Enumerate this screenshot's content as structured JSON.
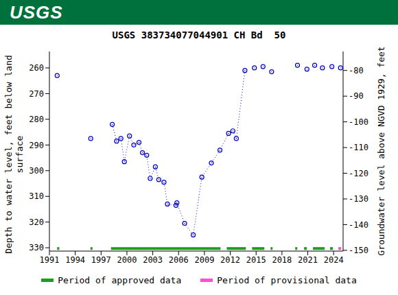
{
  "chart_data": {
    "type": "scatter",
    "logo_text": "USGS",
    "title": "USGS 383734077044901 CH Bd  50",
    "ylabel": "Depth to water level, feet below land surface",
    "y2label": "Groundwater level above NGVD 1929, feet",
    "xlim": [
      1991,
      2025.1
    ],
    "xticks": [
      1991,
      1994,
      1997,
      2000,
      2003,
      2006,
      2009,
      2012,
      2015,
      2018,
      2021,
      2024
    ],
    "ylim": [
      331.3,
      253.6
    ],
    "yticks": [
      260,
      270,
      280,
      290,
      300,
      310,
      320,
      330
    ],
    "y2lim": [
      -150.3,
      -72.6
    ],
    "y2ticks": [
      -80,
      -90,
      -100,
      -110,
      -120,
      -130,
      -140,
      -150
    ],
    "grid": false,
    "series": [
      {
        "type": "line",
        "marker": "circle",
        "line_style": "dotted",
        "color": "#0000cc",
        "x": [
          1998.3,
          1998.8,
          1999.3,
          1999.7,
          2000.3,
          2000.8,
          2001.4,
          2001.8,
          2002.3,
          2002.7,
          2003.3,
          2003.7,
          2004.3,
          2004.7,
          2005.7,
          2005.8,
          2006.7,
          2007.7,
          2008.7,
          2009.8,
          2010.8,
          2011.8,
          2012.3,
          2012.7,
          2013.7
        ],
        "values": [
          282,
          288.5,
          287.5,
          296.5,
          286.5,
          290,
          289,
          293,
          294,
          303,
          298.5,
          303.5,
          304.5,
          313,
          313.5,
          312.5,
          320.5,
          325,
          302.5,
          297,
          292,
          285.5,
          284.5,
          287.5,
          261
        ]
      },
      {
        "type": "scatter",
        "marker": "circle",
        "color": "#0000cc",
        "x": [
          1991.9,
          1995.8,
          2014.8,
          2015.8,
          2016.8,
          2019.8,
          2020.9,
          2021.8,
          2022.7,
          2023.8,
          2024.8
        ],
        "values": [
          263,
          287.5,
          260,
          259.5,
          261.5,
          259,
          260.5,
          259,
          260,
          259.5,
          260
        ]
      }
    ],
    "periods": [
      {
        "name": "Period of approved data",
        "color": "#1e9e1e",
        "ranges": [
          [
            1991.9,
            1992.15
          ],
          [
            1995.77,
            1996.0
          ],
          [
            1998.15,
            2010.87
          ],
          [
            2011.59,
            2013.81
          ],
          [
            2014.53,
            2015.96
          ],
          [
            2016.68,
            2016.91
          ],
          [
            2019.54,
            2019.78
          ],
          [
            2020.57,
            2020.89
          ],
          [
            2021.6,
            2022.96
          ],
          [
            2023.59,
            2023.91
          ]
        ]
      },
      {
        "name": "Period of provisional data",
        "color": "#ff4fd8",
        "ranges": [
          [
            2024.55,
            2024.87
          ]
        ]
      }
    ]
  }
}
